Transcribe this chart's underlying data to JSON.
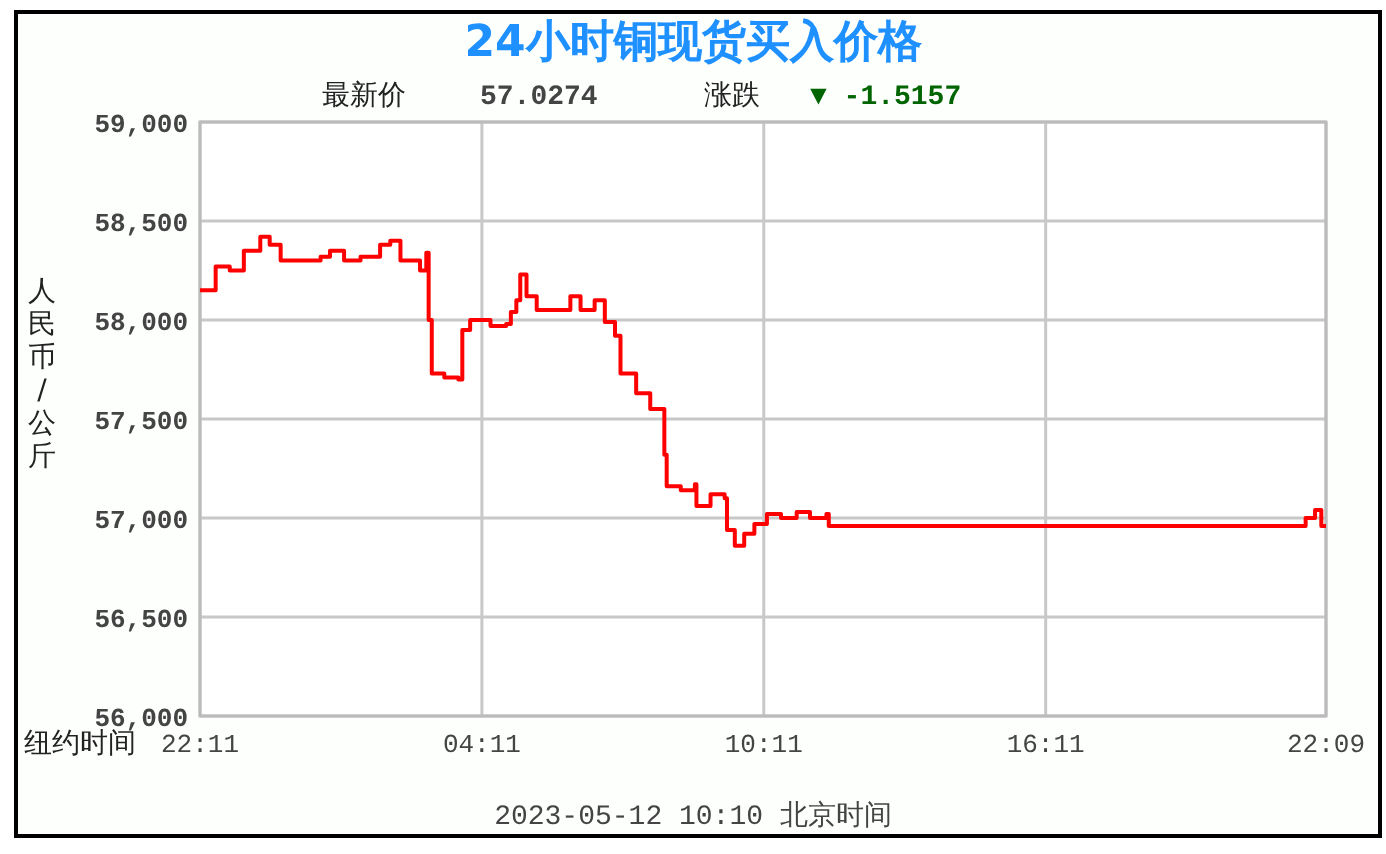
{
  "chart_data": {
    "type": "step",
    "title": "24小时铜现货买入价格",
    "ylabel": "人民币/公斤",
    "xlabel": "纽约时间",
    "annotations": [
      "最新价",
      "57.0274",
      "涨跌",
      "▼ -1.5157",
      "2023-05-12 10:10 北京时间"
    ],
    "xlim": [
      "2023-05-10T22:11",
      "2023-05-11T22:09"
    ],
    "xticks": [
      {
        "value": "2023-05-10T22:11",
        "label": "22:11"
      },
      {
        "value": "2023-05-11T04:11",
        "label": "04:11"
      },
      {
        "value": "2023-05-11T10:11",
        "label": "10:11"
      },
      {
        "value": "2023-05-11T16:11",
        "label": "16:11"
      },
      {
        "value": "2023-05-11T22:09",
        "label": "22:09"
      }
    ],
    "ylim": [
      56000,
      59000
    ],
    "yticks": [
      {
        "value": 56000,
        "label": "56,000"
      },
      {
        "value": 56500,
        "label": "56,500"
      },
      {
        "value": 57000,
        "label": "57,000"
      },
      {
        "value": 57500,
        "label": "57,500"
      },
      {
        "value": 58000,
        "label": "58,000"
      },
      {
        "value": 58500,
        "label": "58,500"
      },
      {
        "value": 59000,
        "label": "59,000"
      }
    ],
    "grid": true,
    "series": [
      {
        "color": "#ff0000",
        "x": [
          "2023-05-10T22:11",
          "2023-05-10T22:19",
          "2023-05-10T22:31",
          "2023-05-10T22:49",
          "2023-05-10T23:07",
          "2023-05-10T23:28",
          "2023-05-10T23:40",
          "2023-05-10T23:54",
          "2023-05-11T00:19",
          "2023-05-11T00:45",
          "2023-05-11T00:57",
          "2023-05-11T01:15",
          "2023-05-11T01:36",
          "2023-05-11T02:01",
          "2023-05-11T02:14",
          "2023-05-11T02:27",
          "2023-05-11T02:40",
          "2023-05-11T02:52",
          "2023-05-11T03:00",
          "2023-05-11T03:03",
          "2023-05-11T03:07",
          "2023-05-11T03:23",
          "2023-05-11T03:41",
          "2023-05-11T03:46",
          "2023-05-11T03:56",
          "2023-05-11T04:22",
          "2023-05-11T04:42",
          "2023-05-11T04:48",
          "2023-05-11T04:55",
          "2023-05-11T05:00",
          "2023-05-11T05:08",
          "2023-05-11T05:21",
          "2023-05-11T05:51",
          "2023-05-11T06:04",
          "2023-05-11T06:17",
          "2023-05-11T06:35",
          "2023-05-11T06:48",
          "2023-05-11T07:01",
          "2023-05-11T07:08",
          "2023-05-11T07:28",
          "2023-05-11T07:46",
          "2023-05-11T08:04",
          "2023-05-11T08:07",
          "2023-05-11T08:25",
          "2023-05-11T08:43",
          "2023-05-11T08:45",
          "2023-05-11T09:03",
          "2023-05-11T09:21",
          "2023-05-11T09:24",
          "2023-05-11T09:34",
          "2023-05-11T09:46",
          "2023-05-11T09:59",
          "2023-05-11T10:15",
          "2023-05-11T10:33",
          "2023-05-11T10:53",
          "2023-05-11T11:10",
          "2023-05-11T11:31",
          "2023-05-11T11:34",
          "2023-05-11T21:12",
          "2023-05-11T21:37",
          "2023-05-11T21:43",
          "2023-05-11T21:55",
          "2023-05-11T22:03",
          "2023-05-11T22:09"
        ],
        "values": [
          58150,
          58150,
          58270,
          58250,
          58350,
          58420,
          58380,
          58300,
          58300,
          58320,
          58350,
          58300,
          58320,
          58380,
          58400,
          58300,
          58300,
          58250,
          58340,
          58000,
          57730,
          57710,
          57700,
          57950,
          58000,
          57970,
          57980,
          58040,
          58100,
          58230,
          58120,
          58050,
          58050,
          58120,
          58050,
          58100,
          57990,
          57920,
          57730,
          57630,
          57550,
          57320,
          57160,
          57140,
          57170,
          57060,
          57120,
          57100,
          56940,
          56860,
          56920,
          56970,
          57020,
          57000,
          57030,
          57000,
          57020,
          56960,
          56960,
          56960,
          57000,
          57040,
          56960,
          56960
        ]
      }
    ]
  }
}
